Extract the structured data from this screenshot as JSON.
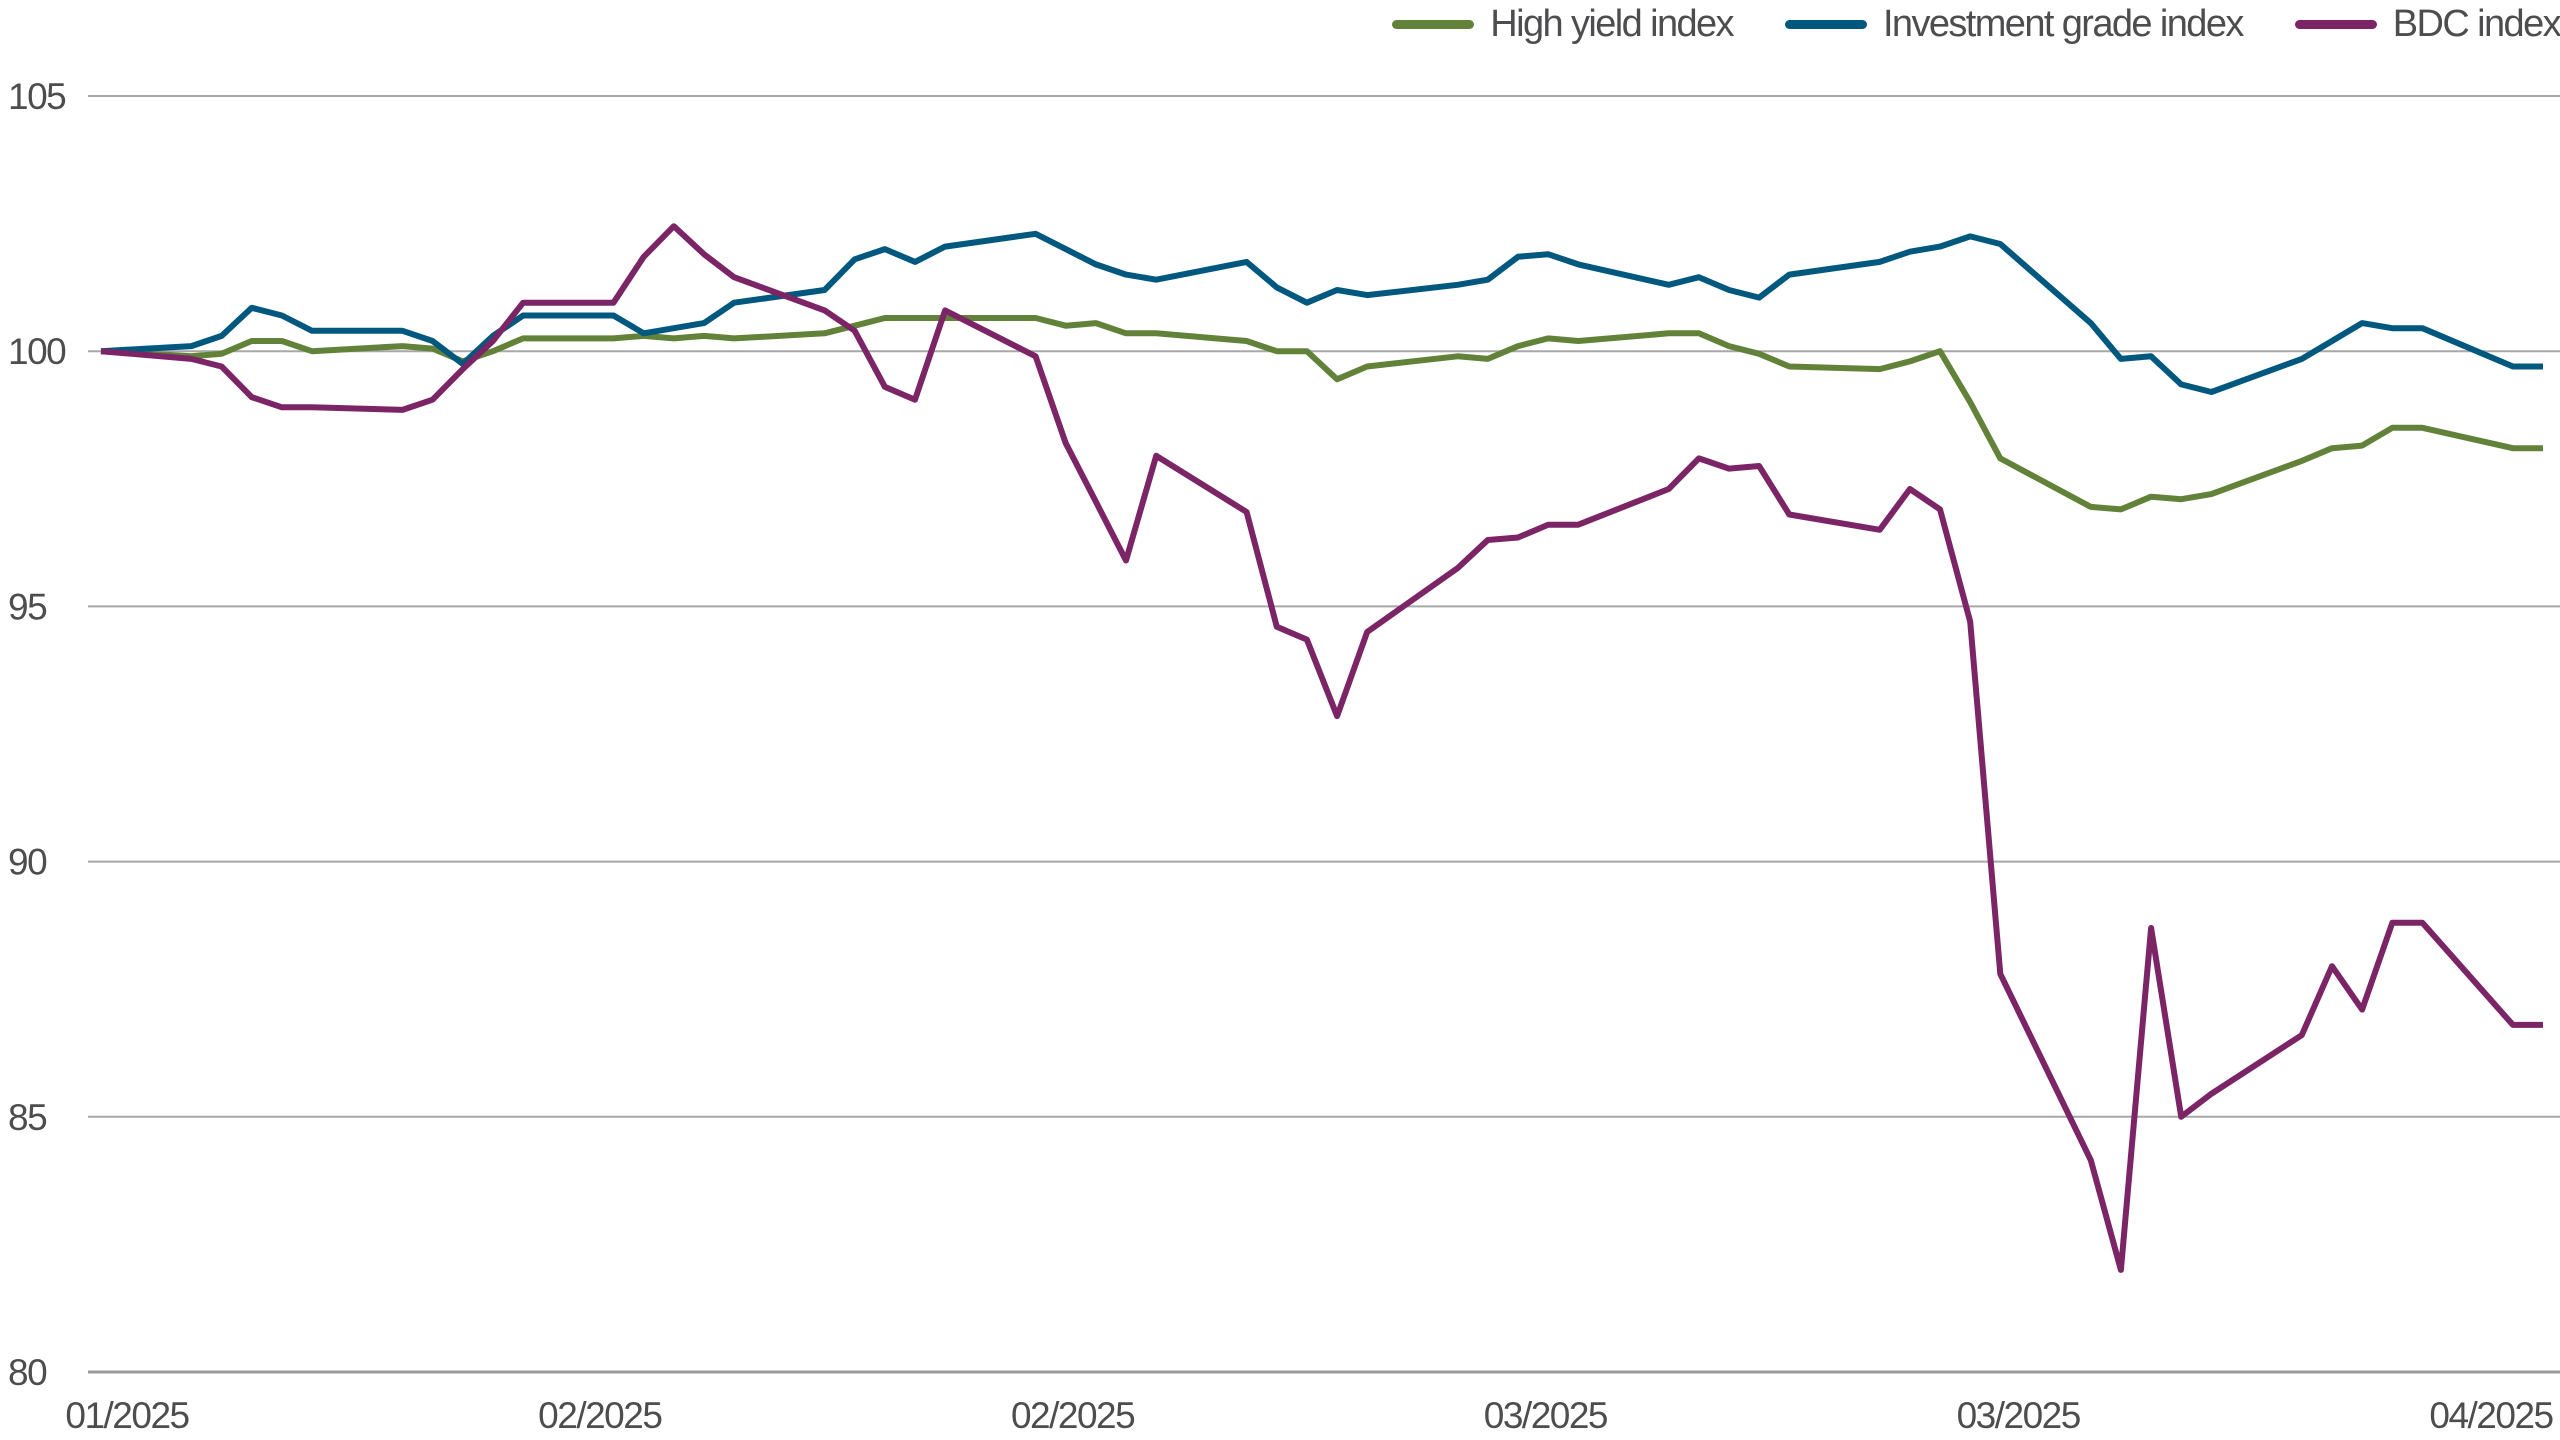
{
  "chart_data": {
    "type": "line",
    "title": "",
    "xlabel": "",
    "ylabel": "",
    "ylim": [
      80,
      105
    ],
    "yticks": [
      "80",
      "85",
      "90",
      "95",
      "100",
      "105"
    ],
    "xtick_labels": [
      "01/2025",
      "02/2025",
      "02/2025",
      "03/2025",
      "03/2025",
      "04/2025"
    ],
    "grid": "horizontal",
    "legend_position": "top-right",
    "series": [
      {
        "name": "High yield index",
        "color": "#62823a",
        "values": [
          100,
          99.9,
          99.95,
          100.2,
          100.2,
          100.0,
          100.1,
          100.05,
          99.8,
          100.0,
          100.25,
          100.25,
          100.3,
          100.25,
          100.3,
          100.25,
          100.35,
          100.5,
          100.65,
          100.65,
          100.65,
          100.65,
          100.5,
          100.55,
          100.35,
          100.35,
          100.2,
          100.0,
          100.0,
          99.45,
          99.7,
          99.9,
          99.85,
          100.1,
          100.25,
          100.2,
          100.35,
          100.35,
          100.1,
          99.95,
          99.7,
          99.65,
          99.8,
          100.0,
          99.0,
          97.9,
          96.95,
          96.9,
          97.15,
          97.1,
          97.2,
          97.85,
          98.1,
          98.15,
          98.5,
          98.5,
          98.1,
          98.1
        ]
      },
      {
        "name": "Investment grade index",
        "color": "#00587f",
        "values": [
          100,
          100.1,
          100.3,
          100.85,
          100.7,
          100.4,
          100.4,
          100.2,
          99.75,
          100.3,
          100.7,
          100.7,
          100.35,
          100.45,
          100.55,
          100.95,
          101.2,
          101.8,
          102.0,
          101.75,
          102.05,
          102.3,
          102.0,
          101.7,
          101.5,
          101.4,
          101.75,
          101.25,
          100.95,
          101.2,
          101.1,
          101.3,
          101.4,
          101.85,
          101.9,
          101.7,
          101.3,
          101.45,
          101.2,
          101.05,
          101.5,
          101.75,
          101.95,
          102.05,
          102.25,
          102.1,
          100.55,
          99.85,
          99.9,
          99.35,
          99.2,
          99.85,
          100.2,
          100.55,
          100.45,
          100.45,
          99.7,
          99.7
        ]
      },
      {
        "name": "BDC index",
        "color": "#7b2567",
        "values": [
          100,
          99.85,
          99.7,
          99.1,
          98.9,
          98.9,
          98.85,
          99.05,
          99.65,
          100.2,
          100.95,
          100.95,
          101.85,
          102.45,
          101.9,
          101.45,
          100.8,
          100.4,
          99.3,
          99.05,
          100.8,
          99.9,
          98.2,
          97.05,
          95.9,
          97.95,
          96.85,
          94.6,
          94.35,
          92.85,
          94.5,
          95.75,
          96.3,
          96.35,
          96.6,
          96.6,
          97.3,
          97.9,
          97.7,
          97.75,
          96.8,
          96.5,
          97.3,
          96.9,
          94.7,
          87.8,
          84.15,
          82.0,
          88.7,
          85.0,
          85.45,
          86.6,
          87.95,
          87.1,
          88.8,
          88.8,
          86.8,
          86.8
        ]
      }
    ]
  }
}
